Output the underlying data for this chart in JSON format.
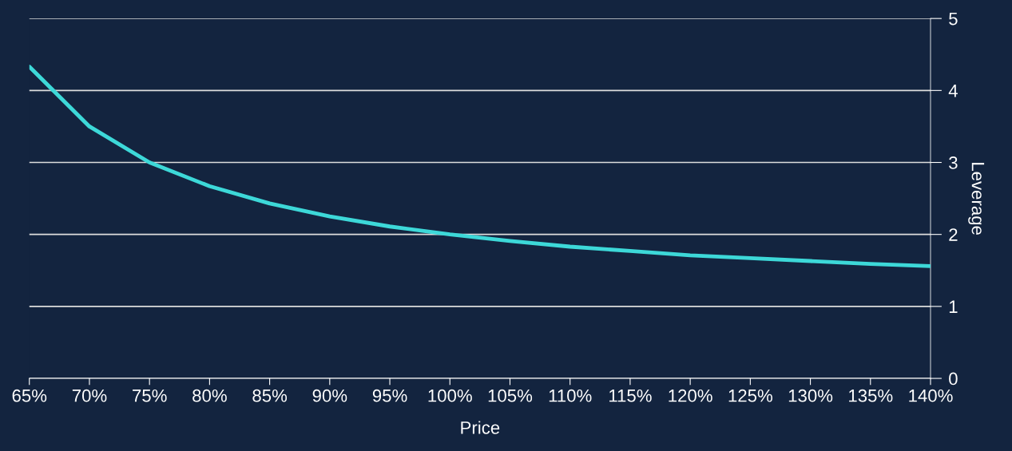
{
  "chart_data": {
    "type": "line",
    "xlabel": "Price",
    "y2label": "Leverage",
    "x": [
      65,
      70,
      75,
      80,
      85,
      90,
      95,
      100,
      105,
      110,
      115,
      120,
      125,
      130,
      135,
      140
    ],
    "series": [
      {
        "color": "#3dd8d8",
        "axis": "y2",
        "values": [
          4.33,
          3.5,
          3.0,
          2.67,
          2.43,
          2.25,
          2.11,
          2.0,
          1.91,
          1.83,
          1.77,
          1.71,
          1.67,
          1.63,
          1.59,
          1.56
        ]
      }
    ],
    "xlim": [
      65,
      140
    ],
    "xticks": [
      {
        "value": 65,
        "label": "65%"
      },
      {
        "value": 70,
        "label": "70%"
      },
      {
        "value": 75,
        "label": "75%"
      },
      {
        "value": 80,
        "label": "80%"
      },
      {
        "value": 85,
        "label": "85%"
      },
      {
        "value": 90,
        "label": "90%"
      },
      {
        "value": 95,
        "label": "95%"
      },
      {
        "value": 100,
        "label": "100%"
      },
      {
        "value": 105,
        "label": "105%"
      },
      {
        "value": 110,
        "label": "110%"
      },
      {
        "value": 115,
        "label": "115%"
      },
      {
        "value": 120,
        "label": "120%"
      },
      {
        "value": 125,
        "label": "125%"
      },
      {
        "value": 130,
        "label": "130%"
      },
      {
        "value": 135,
        "label": "135%"
      },
      {
        "value": 140,
        "label": "140%"
      }
    ],
    "y2lim": [
      0,
      5
    ],
    "y2ticks": [
      0,
      1,
      2,
      3,
      4,
      5
    ],
    "grid": "y",
    "marker": "none",
    "line_style": "solid"
  }
}
